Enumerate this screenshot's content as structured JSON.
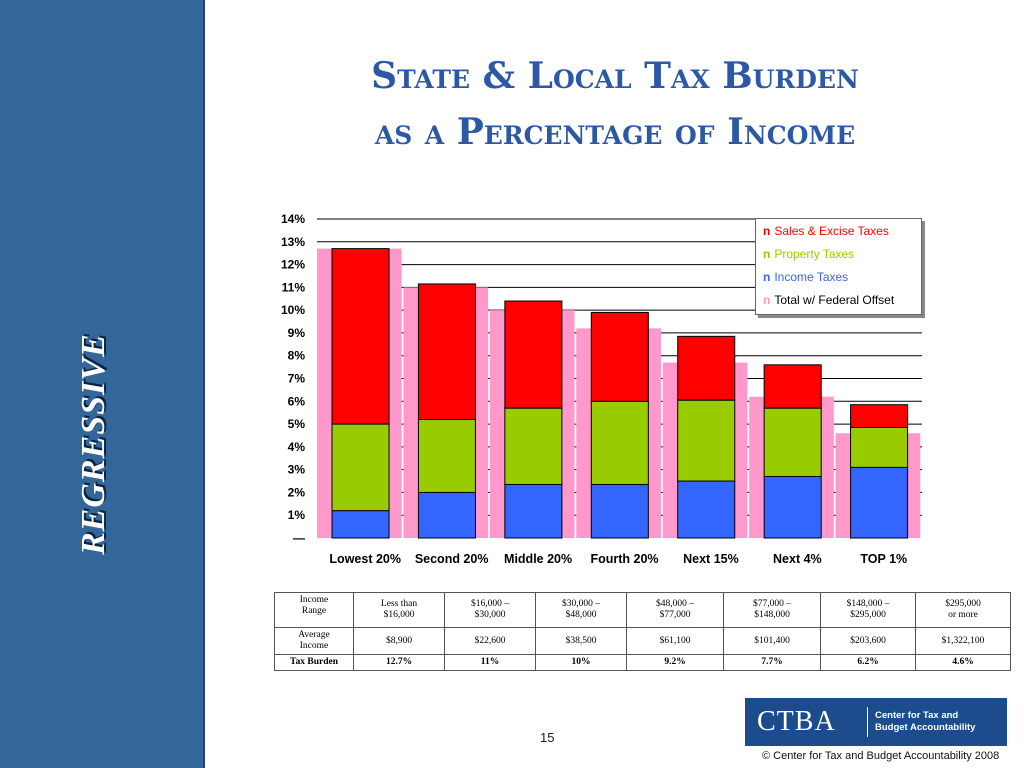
{
  "sidebar": {
    "vertical_label": "REGRESSIVE"
  },
  "slide": {
    "title_line1": "State & Local Tax Burden",
    "title_line2": "as a Percentage of Income",
    "page_number": "15",
    "copyright": "©  Center for Tax and Budget Accountability 2008"
  },
  "logo": {
    "abbr": "CTBA",
    "name_line1": "Center for Tax and",
    "name_line2": "Budget Accountability"
  },
  "colors": {
    "sales": "#ff0000",
    "property": "#99cc00",
    "income": "#3366ff",
    "total": "#ff99cc",
    "title": "#2c58a6",
    "sidebar": "#336699"
  },
  "chart_data": {
    "type": "bar",
    "categories": [
      "Lowest 20%",
      "Second 20%",
      "Middle 20%",
      "Fourth 20%",
      "Next 15%",
      "Next 4%",
      "TOP 1%"
    ],
    "series": [
      {
        "name": "Income Taxes",
        "values": [
          1.2,
          2.0,
          2.35,
          2.35,
          2.5,
          2.7,
          3.1
        ]
      },
      {
        "name": "Property Taxes",
        "values": [
          3.8,
          3.2,
          3.35,
          3.65,
          3.55,
          3.0,
          1.75
        ]
      },
      {
        "name": "Sales & Excise Taxes",
        "values": [
          7.7,
          5.95,
          4.7,
          3.9,
          2.8,
          1.9,
          1.0
        ]
      },
      {
        "name": "Total w/ Federal Offset",
        "values": [
          12.7,
          11.0,
          10.0,
          9.2,
          7.7,
          6.2,
          4.6
        ]
      }
    ],
    "stacked_series": [
      "Income Taxes",
      "Property Taxes",
      "Sales & Excise Taxes"
    ],
    "overlay_series": "Total w/ Federal Offset",
    "y_ticks": [
      "—",
      "1%",
      "2%",
      "3%",
      "4%",
      "5%",
      "6%",
      "7%",
      "8%",
      "9%",
      "10%",
      "11%",
      "12%",
      "13%",
      "14%"
    ],
    "ylim": [
      0,
      14
    ],
    "grid": true,
    "legend_position": "top-right",
    "legend": [
      {
        "bullet": "n",
        "label": "Sales & Excise Taxes",
        "color": "#ff0000"
      },
      {
        "bullet": "n",
        "label": "Property Taxes",
        "color": "#99cc00"
      },
      {
        "bullet": "n",
        "label": "Income Taxes",
        "color": "#3366ff"
      },
      {
        "bullet": "n",
        "label": "Total w/ Federal Offset",
        "color": "#ff99cc"
      }
    ]
  },
  "table": {
    "rows": [
      {
        "header": [
          "Income",
          "Range"
        ],
        "cells": [
          [
            "Less than",
            "$16,000"
          ],
          [
            "$16,000 –",
            "$30,000"
          ],
          [
            "$30,000 –",
            "$48,000"
          ],
          [
            "$48,000 –",
            "$77,000"
          ],
          [
            "$77,000 –",
            "$148,000"
          ],
          [
            "$148,000 –",
            "$295,000"
          ],
          [
            "$295,000",
            "or more"
          ]
        ]
      },
      {
        "header": [
          "Average",
          "Income"
        ],
        "cells": [
          [
            "$8,900"
          ],
          [
            "$22,600"
          ],
          [
            "$38,500"
          ],
          [
            "$61,100"
          ],
          [
            "$101,400"
          ],
          [
            "$203,600"
          ],
          [
            "$1,322,100"
          ]
        ]
      },
      {
        "header": [
          "Tax Burden"
        ],
        "bold": true,
        "cells": [
          [
            "12.7%"
          ],
          [
            "11%"
          ],
          [
            "10%"
          ],
          [
            "9.2%"
          ],
          [
            "7.7%"
          ],
          [
            "6.2%"
          ],
          [
            "4.6%"
          ]
        ]
      }
    ]
  }
}
